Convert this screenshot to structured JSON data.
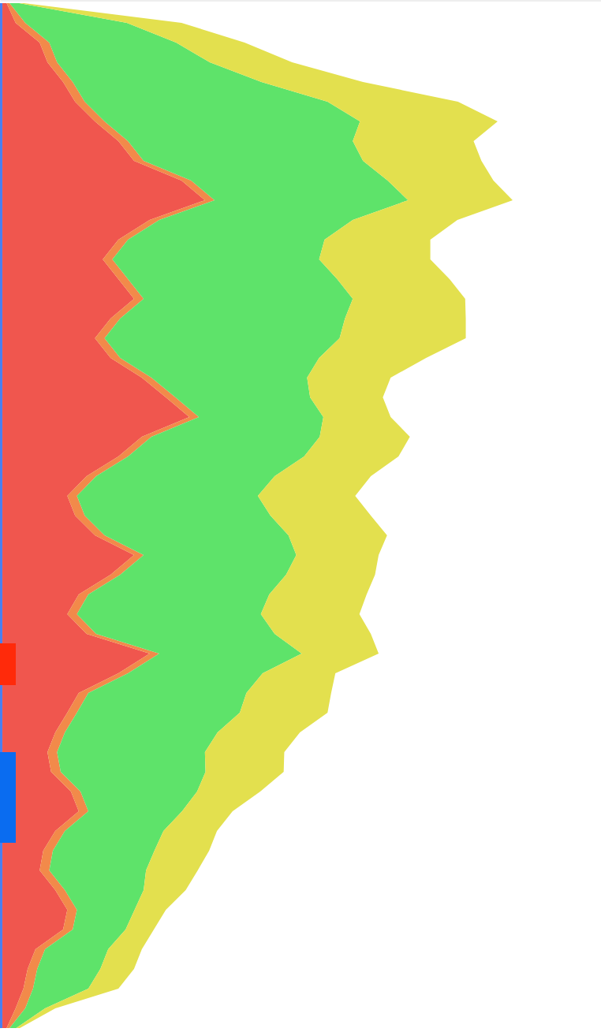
{
  "chart_data": {
    "type": "area",
    "stacked": true,
    "orientation": "horizontal",
    "tick_labels": false,
    "grid": false,
    "xlim": [
      0,
      1300
    ],
    "ylim": [
      0,
      100
    ],
    "x": [
      0,
      25,
      50,
      75,
      100,
      125,
      150,
      175,
      200,
      225,
      250,
      275,
      300,
      325,
      350,
      375,
      400,
      425,
      450,
      475,
      500,
      525,
      550,
      575,
      600,
      625,
      650,
      675,
      700,
      725,
      750,
      775,
      800,
      825,
      850,
      875,
      900,
      925,
      950,
      975,
      1000,
      1025,
      1050,
      1075,
      1100,
      1125,
      1150,
      1175,
      1200,
      1225,
      1250,
      1275,
      1300
    ],
    "series": [
      {
        "color": "#4a7ff0",
        "values": [
          0.4,
          0.4,
          0.4,
          0.4,
          0.4,
          0.4,
          0.4,
          0.4,
          0.4,
          0.4,
          0.4,
          0.4,
          0.4,
          0.4,
          0.4,
          0.4,
          0.4,
          0.4,
          0.4,
          0.4,
          0.4,
          0.4,
          0.4,
          0.4,
          0.4,
          0.4,
          0.4,
          0.4,
          0.4,
          0.4,
          0.4,
          0.4,
          0.4,
          0.4,
          0.4,
          0.4,
          0.4,
          0.4,
          0.4,
          0.4,
          0.4,
          0.4,
          0.4,
          0.4,
          0.4,
          0.4,
          0.4,
          0.4,
          0.4,
          0.4,
          0.4,
          0.4,
          0.4
        ]
      },
      {
        "color": "#f0564e",
        "values": [
          0.7,
          2.2,
          6.2,
          7.5,
          10.1,
          12.1,
          15.4,
          19.3,
          21.9,
          29.8,
          33.7,
          24.5,
          19.3,
          16.7,
          19.3,
          21.9,
          18.0,
          15.4,
          18.0,
          23.2,
          27.2,
          31.1,
          23.2,
          19.3,
          14.0,
          10.8,
          12.1,
          15.4,
          21.9,
          18.0,
          12.7,
          10.8,
          14.0,
          24.5,
          19.3,
          12.7,
          10.8,
          8.8,
          7.5,
          8.1,
          11.4,
          12.7,
          8.8,
          6.8,
          6.2,
          8.8,
          10.8,
          10.1,
          5.5,
          4.2,
          3.5,
          2.2,
          0.7
        ]
      },
      {
        "color": "#f28a4a",
        "values": [
          0.5,
          1.6,
          1.6,
          1.6,
          1.6,
          1.6,
          1.6,
          1.6,
          1.6,
          1.6,
          1.6,
          1.6,
          1.6,
          1.6,
          1.6,
          1.6,
          1.6,
          1.6,
          1.6,
          1.6,
          1.6,
          1.6,
          1.6,
          1.6,
          1.6,
          1.6,
          1.6,
          1.6,
          1.6,
          1.6,
          1.6,
          1.6,
          1.6,
          1.6,
          1.6,
          1.6,
          1.6,
          1.6,
          1.6,
          1.6,
          1.6,
          1.6,
          1.6,
          1.6,
          1.6,
          1.6,
          1.6,
          1.6,
          1.6,
          1.6,
          1.6,
          1.6,
          0.5
        ]
      },
      {
        "color": "#5ee36a",
        "values": [
          1.6,
          16.9,
          21.1,
          25.4,
          31.4,
          40.4,
          42.5,
          37.4,
          36.5,
          32.7,
          32.2,
          32.2,
          32.7,
          34.4,
          34.8,
          34.8,
          37.4,
          39.1,
          33.1,
          25.9,
          22.4,
          20.7,
          28.0,
          29.3,
          29.7,
          30.1,
          30.9,
          30.6,
          25.4,
          27.6,
          30.1,
          30.6,
          29.7,
          23.7,
          22.4,
          26.3,
          27.1,
          25.4,
          24.6,
          24.1,
          19.4,
          15.6,
          16.4,
          16.9,
          16.1,
          13.1,
          9.6,
          8.8,
          10.5,
          10.5,
          9.2,
          3.3,
          1.1
        ]
      },
      {
        "color": "#e3e04e",
        "values": [
          0.8,
          9.1,
          11.4,
          13.7,
          16.9,
          21.7,
          22.9,
          20.1,
          19.7,
          17.6,
          17.4,
          17.4,
          17.6,
          18.5,
          18.7,
          18.7,
          20.1,
          21.0,
          17.8,
          13.9,
          12.1,
          11.2,
          15.0,
          15.7,
          16.0,
          16.2,
          16.7,
          16.4,
          13.7,
          14.8,
          16.2,
          16.4,
          16.0,
          12.8,
          12.1,
          14.1,
          14.6,
          13.7,
          13.2,
          13.0,
          10.5,
          8.4,
          8.9,
          9.1,
          8.6,
          7.0,
          5.2,
          4.7,
          5.6,
          5.6,
          5.0,
          1.7,
          0.6
        ]
      }
    ],
    "highlights": [
      {
        "start": 812,
        "end": 865,
        "color": "#ff2a0a"
      },
      {
        "start": 950,
        "end": 1065,
        "color": "#0a6cf0"
      }
    ]
  }
}
